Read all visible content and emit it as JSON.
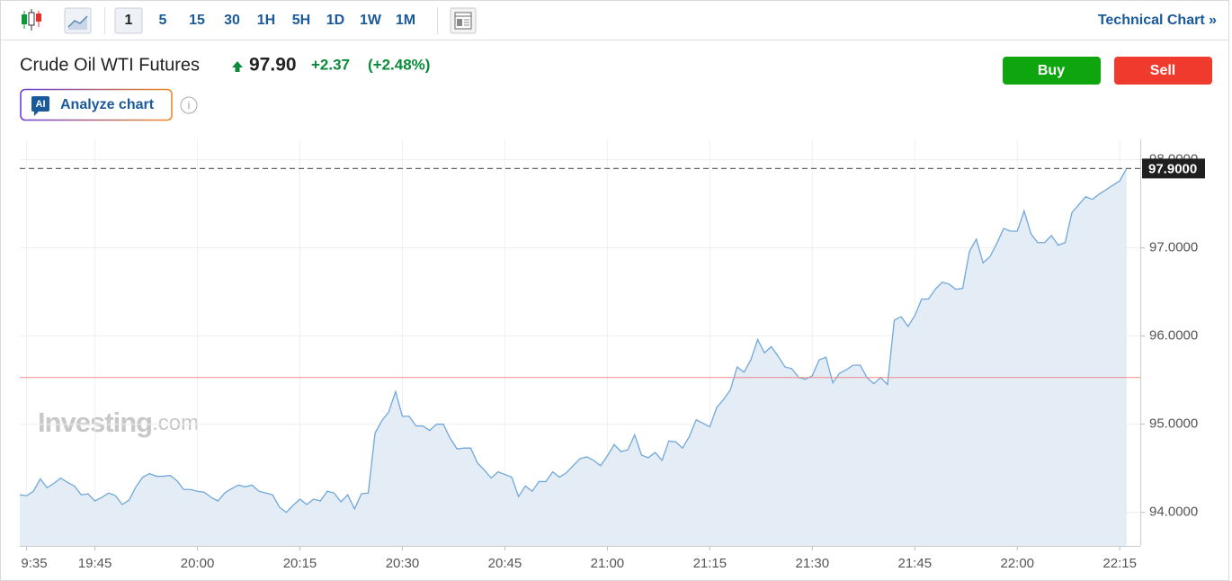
{
  "toolbar": {
    "intervals": [
      "1",
      "5",
      "15",
      "30",
      "1H",
      "5H",
      "1D",
      "1W",
      "1M"
    ],
    "active_interval": 0,
    "technical_chart": "Technical Chart »"
  },
  "header": {
    "instrument": "Crude Oil WTI Futures",
    "price": "97.90",
    "change": "+2.37",
    "change_pct": "(+2.48%)",
    "buy": "Buy",
    "sell": "Sell",
    "ai_badge": "AI",
    "analyze": "Analyze chart",
    "info": "i"
  },
  "watermark": {
    "brand": "Investing",
    "suffix": ".com"
  },
  "chart_data": {
    "type": "area",
    "x": [
      "19:34",
      "19:35",
      "19:36",
      "19:37",
      "19:38",
      "19:39",
      "19:40",
      "19:41",
      "19:42",
      "19:43",
      "19:44",
      "19:45",
      "19:46",
      "19:47",
      "19:48",
      "19:49",
      "19:50",
      "19:51",
      "19:52",
      "19:53",
      "19:54",
      "19:55",
      "19:56",
      "19:57",
      "19:58",
      "19:59",
      "20:00",
      "20:01",
      "20:02",
      "20:03",
      "20:04",
      "20:05",
      "20:06",
      "20:07",
      "20:08",
      "20:09",
      "20:10",
      "20:11",
      "20:12",
      "20:13",
      "20:14",
      "20:15",
      "20:16",
      "20:17",
      "20:18",
      "20:19",
      "20:20",
      "20:21",
      "20:22",
      "20:23",
      "20:24",
      "20:25",
      "20:26",
      "20:27",
      "20:28",
      "20:29",
      "20:30",
      "20:31",
      "20:32",
      "20:33",
      "20:34",
      "20:35",
      "20:36",
      "20:37",
      "20:38",
      "20:39",
      "20:40",
      "20:41",
      "20:42",
      "20:43",
      "20:44",
      "20:45",
      "20:46",
      "20:47",
      "20:48",
      "20:49",
      "20:50",
      "20:51",
      "20:52",
      "20:53",
      "20:54",
      "20:55",
      "20:56",
      "20:57",
      "20:58",
      "20:59",
      "21:00",
      "21:01",
      "21:02",
      "21:03",
      "21:04",
      "21:05",
      "21:06",
      "21:07",
      "21:08",
      "21:09",
      "21:10",
      "21:11",
      "21:12",
      "21:13",
      "21:14",
      "21:15",
      "21:16",
      "21:17",
      "21:18",
      "21:19",
      "21:20",
      "21:21",
      "21:22",
      "21:23",
      "21:24",
      "21:25",
      "21:26",
      "21:27",
      "21:28",
      "21:29",
      "21:30",
      "21:31",
      "21:32",
      "21:33",
      "21:34",
      "21:35",
      "21:36",
      "21:37",
      "21:38",
      "21:39",
      "21:40",
      "21:41",
      "21:42",
      "21:43",
      "21:44",
      "21:45",
      "21:46",
      "21:47",
      "21:48",
      "21:49",
      "21:50",
      "21:51",
      "21:52",
      "21:53",
      "21:54",
      "21:55",
      "21:56",
      "21:57",
      "21:58",
      "21:59",
      "22:00",
      "22:01",
      "22:02",
      "22:03",
      "22:04",
      "22:05",
      "22:06",
      "22:07",
      "22:08",
      "22:09",
      "22:10",
      "22:11",
      "22:12",
      "22:13",
      "22:14",
      "22:15",
      "22:16"
    ],
    "values": [
      94.2,
      94.19,
      94.24,
      94.38,
      94.28,
      94.33,
      94.39,
      94.34,
      94.3,
      94.2,
      94.21,
      94.13,
      94.17,
      94.22,
      94.19,
      94.09,
      94.14,
      94.29,
      94.4,
      94.44,
      94.41,
      94.41,
      94.42,
      94.36,
      94.26,
      94.26,
      94.24,
      94.23,
      94.17,
      94.13,
      94.22,
      94.27,
      94.31,
      94.29,
      94.31,
      94.24,
      94.22,
      94.2,
      94.06,
      94.0,
      94.08,
      94.15,
      94.09,
      94.15,
      94.13,
      94.24,
      94.22,
      94.12,
      94.2,
      94.04,
      94.21,
      94.22,
      94.9,
      95.04,
      95.14,
      95.37,
      95.09,
      95.09,
      94.98,
      94.98,
      94.93,
      95.0,
      95.0,
      94.84,
      94.72,
      94.73,
      94.73,
      94.56,
      94.48,
      94.39,
      94.46,
      94.43,
      94.4,
      94.18,
      94.3,
      94.24,
      94.35,
      94.35,
      94.46,
      94.4,
      94.45,
      94.53,
      94.61,
      94.63,
      94.59,
      94.53,
      94.64,
      94.77,
      94.69,
      94.71,
      94.88,
      94.65,
      94.62,
      94.68,
      94.59,
      94.81,
      94.8,
      94.73,
      94.86,
      95.05,
      95.01,
      94.97,
      95.19,
      95.28,
      95.39,
      95.65,
      95.59,
      95.73,
      95.96,
      95.81,
      95.88,
      95.77,
      95.65,
      95.63,
      95.53,
      95.51,
      95.55,
      95.73,
      95.76,
      95.47,
      95.58,
      95.62,
      95.67,
      95.67,
      95.53,
      95.46,
      95.53,
      95.45,
      96.18,
      96.22,
      96.11,
      96.23,
      96.42,
      96.42,
      96.53,
      96.61,
      96.59,
      96.53,
      96.54,
      96.96,
      97.1,
      96.83,
      96.9,
      97.05,
      97.22,
      97.19,
      97.19,
      97.42,
      97.16,
      97.06,
      97.06,
      97.14,
      97.03,
      97.06,
      97.4,
      97.49,
      97.58,
      97.55,
      97.61,
      97.66,
      97.71,
      97.76,
      97.9
    ],
    "color": "#6fa8dc",
    "fill_color": "#e4ecf5",
    "xlim": [
      "19:34",
      "22:18"
    ],
    "xticks": [
      {
        "value": "19:35",
        "label": "9:35"
      },
      "19:45",
      "20:00",
      "20:15",
      "20:30",
      "20:45",
      "21:00",
      "21:15",
      "21:30",
      "21:45",
      "22:00",
      "22:15"
    ],
    "ylim": [
      93.62,
      98.23
    ],
    "yticks": [
      {
        "value": 94,
        "label": "94.0000"
      },
      {
        "value": 95,
        "label": "95.0000"
      },
      {
        "value": 96,
        "label": "96.0000"
      },
      {
        "value": 97,
        "label": "97.0000"
      },
      {
        "value": 98,
        "label": "98.0000"
      }
    ],
    "grid": true,
    "hlines": [
      {
        "value": 95.53,
        "color": "#ef8a8a"
      }
    ],
    "last_price": {
      "value": 97.9,
      "label": "97.9000",
      "color": "#1f1f1f"
    }
  }
}
